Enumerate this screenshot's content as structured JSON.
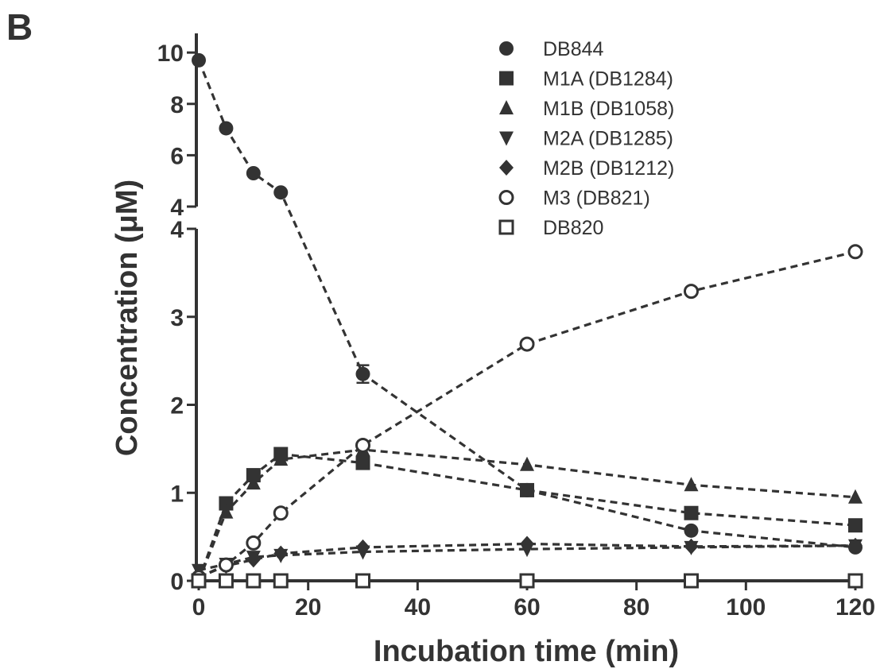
{
  "panel_label": "B",
  "colors": {
    "ink": "#333333",
    "background": "#ffffff"
  },
  "chart_data": {
    "type": "line",
    "xlabel": "Incubation time (min)",
    "ylabel": "Concentration (μM)",
    "xlim": [
      0,
      120
    ],
    "x_ticks": [
      0,
      20,
      40,
      60,
      80,
      100,
      120
    ],
    "y_axis_broken": true,
    "y_lower_segment": {
      "range": [
        0,
        4
      ],
      "ticks": [
        0,
        1,
        2,
        3,
        4
      ]
    },
    "y_upper_segment": {
      "range": [
        4,
        10.5
      ],
      "ticks": [
        4,
        6,
        8,
        10
      ]
    },
    "grid": false,
    "legend_position": "top-right",
    "x": [
      0,
      5,
      10,
      15,
      30,
      60,
      90,
      120
    ],
    "series": [
      {
        "name": "DB844",
        "marker": "circle-filled",
        "values": [
          9.7,
          7.05,
          5.3,
          4.55,
          2.35,
          1.03,
          0.57,
          0.38
        ],
        "errors": [
          0,
          0,
          0,
          0,
          0.1,
          0,
          0,
          0
        ]
      },
      {
        "name": "M1A (DB1284)",
        "marker": "square-filled",
        "values": [
          0.0,
          0.88,
          1.2,
          1.44,
          1.34,
          1.03,
          0.77,
          0.63
        ]
      },
      {
        "name": "M1B (DB1058)",
        "marker": "triangle-up-filled",
        "values": [
          0.0,
          0.78,
          1.11,
          1.38,
          1.49,
          1.32,
          1.09,
          0.95
        ]
      },
      {
        "name": "M2A (DB1285)",
        "marker": "triangle-down-filled",
        "values": [
          0.12,
          0.19,
          0.27,
          0.29,
          0.33,
          0.36,
          0.38,
          0.4
        ]
      },
      {
        "name": "M2B (DB1212)",
        "marker": "diamond-filled",
        "values": [
          0.04,
          0.17,
          0.24,
          0.31,
          0.38,
          0.42,
          0.39,
          0.4
        ]
      },
      {
        "name": "M3 (DB821)",
        "marker": "circle-open",
        "values": [
          0.04,
          0.18,
          0.43,
          0.77,
          1.54,
          2.69,
          3.29,
          3.74
        ]
      },
      {
        "name": "DB820",
        "marker": "square-open",
        "values": [
          0.0,
          0.0,
          0.0,
          0.0,
          0.0,
          0.0,
          0.0,
          0.0
        ]
      }
    ]
  }
}
